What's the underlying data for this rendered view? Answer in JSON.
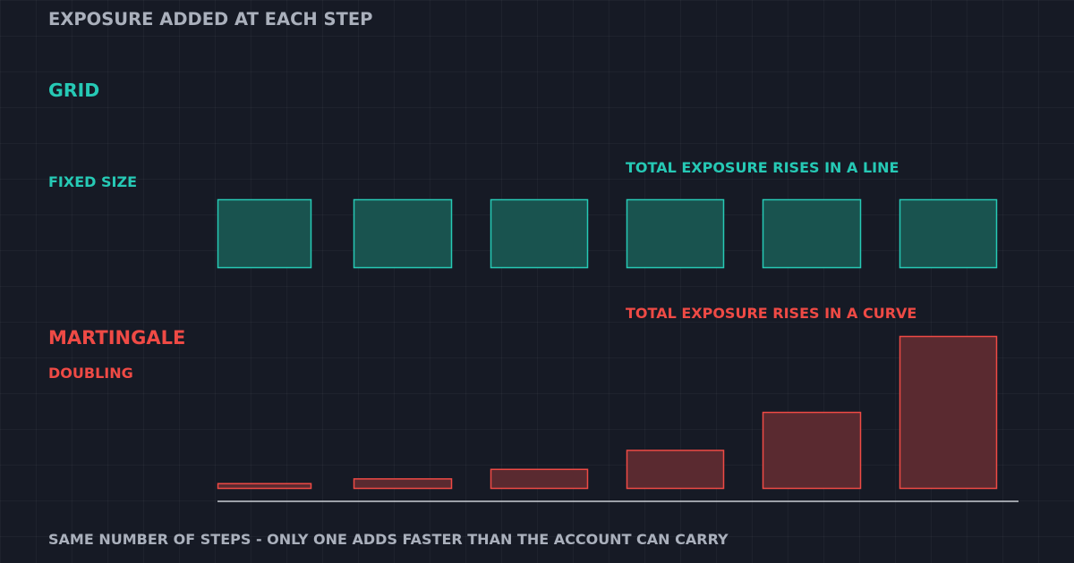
{
  "title": "EXPOSURE ADDED AT EACH STEP",
  "grid": {
    "heading": "GRID",
    "subheading": "FIXED SIZE",
    "note": "TOTAL EXPOSURE RISES IN A LINE",
    "color": "#26c9b5",
    "fill": "#19534f",
    "step_sizes": [
      1,
      1,
      1,
      1,
      1,
      1
    ]
  },
  "martingale": {
    "heading": "MARTINGALE",
    "subheading": "DOUBLING",
    "note": "TOTAL EXPOSURE RISES IN A CURVE",
    "color": "#ef4a45",
    "fill": "#5a2a30",
    "step_sizes": [
      1,
      2,
      4,
      8,
      16,
      32
    ]
  },
  "footer": "SAME NUMBER OF STEPS  -  ONLY ONE ADDS FASTER THAN THE ACCOUNT CAN CARRY",
  "colors": {
    "background": "#161a25",
    "muted_text": "#aab0bc",
    "baseline": "#c8ccd4"
  }
}
